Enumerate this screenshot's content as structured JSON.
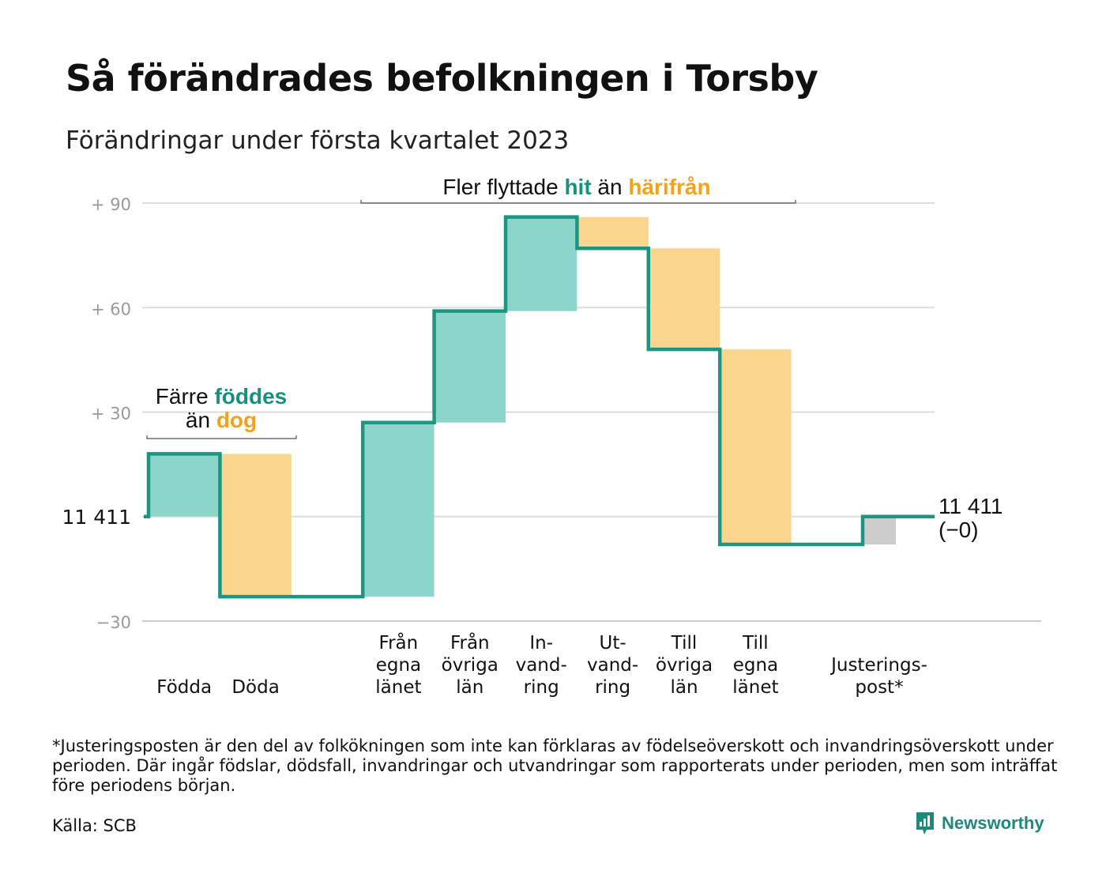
{
  "title": "Så förändrades befolkningen i Torsby",
  "subtitle": "Förändringar under första kvartalet 2023",
  "colors": {
    "line": "#1a9682",
    "increase": "#8dd5cb",
    "decrease": "#f9d58d",
    "adjustment": "#cccccc",
    "grid": "#dddddd",
    "tick": "#999999",
    "accent_green": "#17917f",
    "accent_orange": "#f2a31c"
  },
  "chart_data": {
    "type": "waterfall",
    "baseline_population": 11411,
    "ylim": [
      -30,
      90
    ],
    "y_ticks": [
      {
        "value": 90,
        "label": "+ 90"
      },
      {
        "value": 60,
        "label": "+ 60"
      },
      {
        "value": 30,
        "label": "+ 30"
      },
      {
        "value": 0,
        "label": "11 411"
      },
      {
        "value": -30,
        "label": "−30"
      }
    ],
    "steps": [
      {
        "label": [
          "Födda"
        ],
        "change": 18,
        "kind": "increase"
      },
      {
        "label": [
          "Döda"
        ],
        "change": -41,
        "kind": "decrease"
      },
      {
        "label": [],
        "change": 0,
        "kind": "gap"
      },
      {
        "label": [
          "Från",
          "egna",
          "länet"
        ],
        "change": 50,
        "kind": "increase"
      },
      {
        "label": [
          "Från",
          "övriga",
          "län"
        ],
        "change": 32,
        "kind": "increase"
      },
      {
        "label": [
          "In-",
          "vand-",
          "ring"
        ],
        "change": 27,
        "kind": "increase"
      },
      {
        "label": [
          "Ut-",
          "vand-",
          "ring"
        ],
        "change": -9,
        "kind": "decrease"
      },
      {
        "label": [
          "Till",
          "övriga",
          "län"
        ],
        "change": -29,
        "kind": "decrease"
      },
      {
        "label": [
          "Till",
          "egna",
          "länet"
        ],
        "change": -56,
        "kind": "decrease"
      },
      {
        "label": [],
        "change": 0,
        "kind": "gap"
      },
      {
        "label": [
          "Justerings-",
          "post*"
        ],
        "change": 8,
        "kind": "adjustment"
      }
    ],
    "end_label": [
      "11 411",
      "(−0)"
    ],
    "annotations": {
      "births_deaths": {
        "line1_pre": "Färre ",
        "line1_highlight": "föddes",
        "line2_pre": "än ",
        "line2_highlight": "dog"
      },
      "migration": {
        "pre": "Fler flyttade ",
        "highlight1": "hit",
        "mid": " än ",
        "highlight2": "härifrån"
      }
    }
  },
  "footnote": "*Justeringsposten är den del av folkökningen som inte kan förklaras av födelseöverskott och invandringsöverskott under perioden. Där ingår födslar, dödsfall, invandringar och utvandringar som rapporterats under perioden, men som inträffat före periodens början.",
  "source": "Källa: SCB",
  "brand": "Newsworthy"
}
